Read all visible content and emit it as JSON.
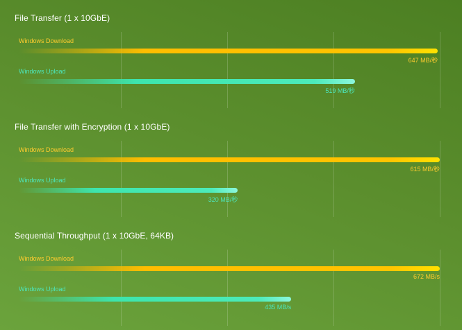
{
  "colors": {
    "download": "#ffc400",
    "upload": "#3de5ad",
    "background": "#5b8e2d",
    "title": "#ffffff"
  },
  "chart_data": [
    {
      "type": "bar",
      "orientation": "horizontal",
      "title": "File Transfer (1 x 10GbE)",
      "categories": [
        "Windows Download",
        "Windows Upload"
      ],
      "values": [
        647,
        519
      ],
      "value_labels": [
        "647 MB/秒",
        "519 MB/秒"
      ],
      "xlim": [
        0,
        650
      ],
      "grid": true
    },
    {
      "type": "bar",
      "orientation": "horizontal",
      "title": "File Transfer with Encryption (1 x 10GbE)",
      "categories": [
        "Windows Download",
        "Windows Upload"
      ],
      "values": [
        615,
        320
      ],
      "value_labels": [
        "615 MB/秒",
        "320 MB/秒"
      ],
      "xlim": [
        0,
        615
      ],
      "grid": true
    },
    {
      "type": "bar",
      "orientation": "horizontal",
      "title": "Sequential Throughput (1 x 10GbE, 64KB)",
      "categories": [
        "Windows Download",
        "Windows Upload"
      ],
      "values": [
        672,
        435
      ],
      "value_labels": [
        "672 MB/s",
        "435 MB/s"
      ],
      "xlim": [
        0,
        672
      ],
      "grid": true
    }
  ]
}
